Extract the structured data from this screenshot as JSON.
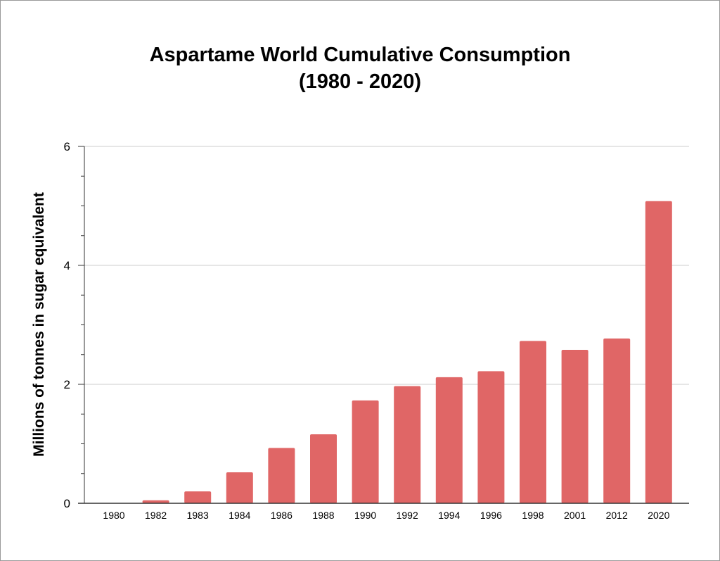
{
  "chart_data": {
    "type": "bar",
    "title": "Aspartame World Cumulative Consumption",
    "subtitle": "(1980 - 2020)",
    "xlabel": "",
    "ylabel": "Millions of tonnes in sugar equivalent",
    "categories": [
      "1980",
      "1982",
      "1983",
      "1984",
      "1986",
      "1988",
      "1990",
      "1992",
      "1994",
      "1996",
      "1998",
      "2001",
      "2012",
      "2020"
    ],
    "values": [
      0.0,
      0.05,
      0.2,
      0.52,
      0.93,
      1.16,
      1.73,
      1.97,
      2.12,
      2.22,
      2.73,
      2.58,
      2.77,
      5.08
    ],
    "ylim": [
      0,
      6
    ],
    "yticks": [
      "0",
      "2",
      "4",
      "6"
    ],
    "grid": true,
    "colors": {
      "bar": "#e06666",
      "grid": "#cccccc",
      "axis": "#333333"
    }
  }
}
